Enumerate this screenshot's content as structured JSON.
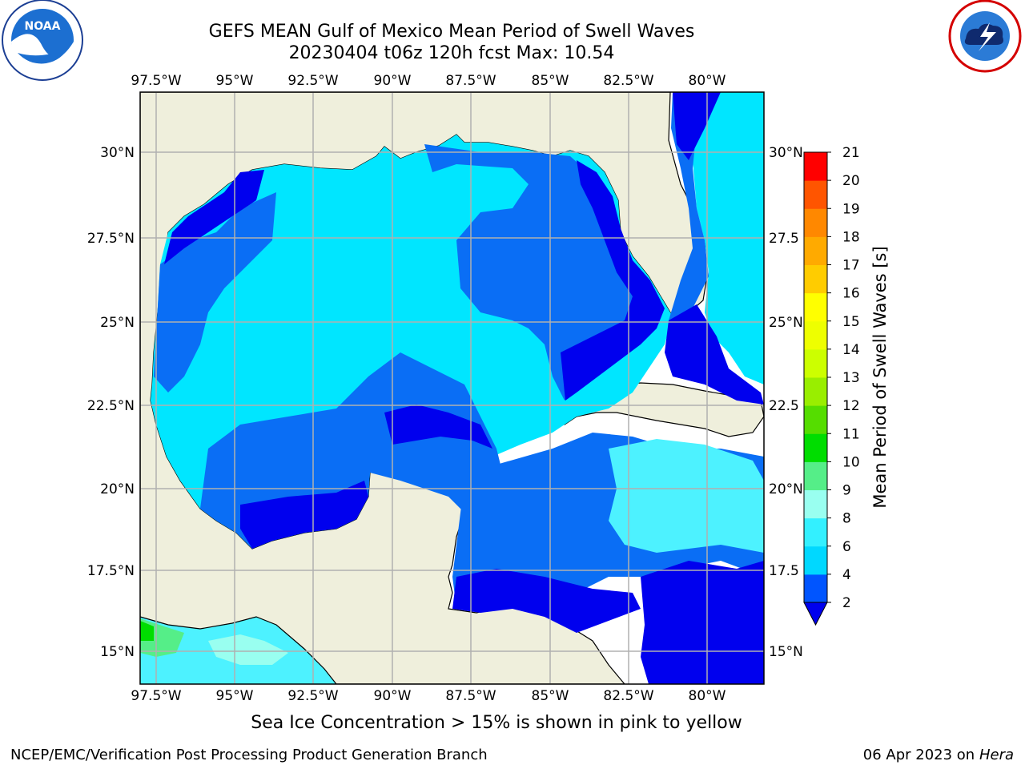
{
  "title": {
    "line1": "GEFS MEAN Gulf of Mexico Mean Period of Swell Waves",
    "line2": "20230404 t06z 120h fcst   Max: 10.54"
  },
  "logos": {
    "left": {
      "name": "NOAA",
      "ring_text": "NATIONAL OCEANIC AND ATMOSPHERIC ADMINISTRATION",
      "bottom_text": "U.S. DEPARTMENT OF COMMERCE"
    },
    "right": {
      "ring_text": "NATIONAL WEATHER SERVICE"
    }
  },
  "map": {
    "lon_labels": [
      "97.5°W",
      "95°W",
      "92.5°W",
      "90°W",
      "87.5°W",
      "85°W",
      "82.5°W",
      "80°W"
    ],
    "lat_labels_left": [
      "30°N",
      "27.5°N",
      "25°N",
      "22.5°N",
      "20°N",
      "17.5°N",
      "15°N"
    ],
    "lat_labels_right": [
      "30°N",
      "27.5",
      "25°N",
      "22.5",
      "20°N",
      "17.5",
      "15°N"
    ],
    "land_color": "#efefdc",
    "grid_color": "#b0b0b0"
  },
  "colorbar": {
    "label": "Mean Period of Swell Waves [s]",
    "ticks": [
      "2",
      "4",
      "6",
      "8",
      "9",
      "10",
      "11",
      "12",
      "13",
      "14",
      "15",
      "16",
      "17",
      "18",
      "19",
      "20",
      "21"
    ],
    "colors": [
      "#0055ff",
      "#00d8ff",
      "#33f0ff",
      "#99fff0",
      "#55ee88",
      "#00dd00",
      "#55dd00",
      "#99ee00",
      "#ccff00",
      "#eeff00",
      "#ffff00",
      "#ffcc00",
      "#ffaa00",
      "#ff8800",
      "#ff5500",
      "#ff0000"
    ],
    "extend_color": "#0000ee"
  },
  "footer": {
    "ice_note": "Sea Ice Concentration > 15% is shown in pink to yellow",
    "credit": "NCEP/EMC/Verification Post Processing Product Generation Branch",
    "date": "06 Apr 2023 on",
    "machine": "Hera"
  }
}
